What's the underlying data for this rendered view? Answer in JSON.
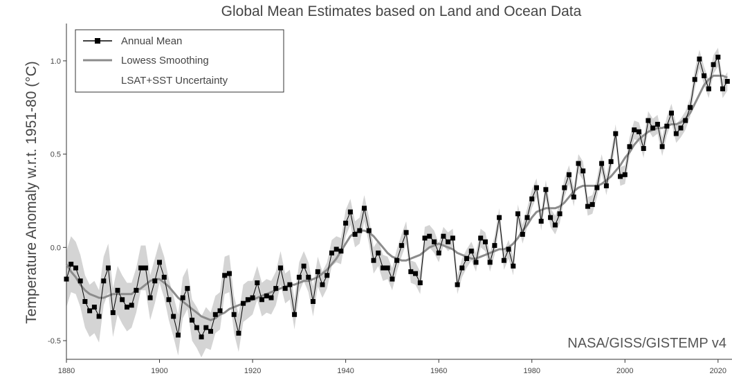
{
  "chart_data": {
    "type": "line",
    "title": "Global Mean Estimates based on Land and Ocean Data",
    "xlabel": "",
    "ylabel": "Temperature Anomaly w.r.t. 1951-80 (°C)",
    "source": "NASA/GISS/GISTEMP v4",
    "xlim": [
      1880,
      2023
    ],
    "ylim": [
      -0.6,
      1.2
    ],
    "xticks": [
      1880,
      1900,
      1920,
      1940,
      1960,
      1980,
      2000,
      2020
    ],
    "yticks": [
      -0.5,
      0.0,
      0.5,
      1.0
    ],
    "ytick_labels": [
      "-0.5",
      "0.0",
      "0.5",
      "1.0"
    ],
    "legend": {
      "position": "top-left",
      "entries": [
        "Annual Mean",
        "Lowess Smoothing",
        "LSAT+SST Uncertainty"
      ]
    },
    "colors": {
      "annual": "#000000",
      "lowess": "#8c8c8c",
      "uncertainty": "#d4d4d4"
    },
    "years_start": 1880,
    "series": [
      {
        "name": "Annual Mean",
        "values": [
          -0.17,
          -0.09,
          -0.11,
          -0.18,
          -0.29,
          -0.34,
          -0.32,
          -0.37,
          -0.18,
          -0.11,
          -0.35,
          -0.23,
          -0.28,
          -0.32,
          -0.31,
          -0.23,
          -0.11,
          -0.11,
          -0.27,
          -0.18,
          -0.08,
          -0.16,
          -0.28,
          -0.37,
          -0.47,
          -0.27,
          -0.22,
          -0.39,
          -0.43,
          -0.48,
          -0.43,
          -0.45,
          -0.36,
          -0.34,
          -0.15,
          -0.14,
          -0.36,
          -0.46,
          -0.3,
          -0.28,
          -0.27,
          -0.19,
          -0.28,
          -0.26,
          -0.27,
          -0.22,
          -0.11,
          -0.22,
          -0.2,
          -0.36,
          -0.16,
          -0.1,
          -0.16,
          -0.29,
          -0.13,
          -0.2,
          -0.15,
          -0.03,
          -0.01,
          -0.02,
          0.13,
          0.19,
          0.07,
          0.09,
          0.21,
          0.09,
          -0.07,
          -0.03,
          -0.11,
          -0.11,
          -0.17,
          -0.07,
          0.01,
          0.08,
          -0.13,
          -0.14,
          -0.19,
          0.05,
          0.06,
          0.03,
          -0.03,
          0.06,
          0.03,
          0.05,
          -0.2,
          -0.11,
          -0.06,
          -0.02,
          -0.08,
          0.05,
          0.03,
          -0.08,
          0.01,
          0.16,
          -0.07,
          -0.01,
          -0.1,
          0.18,
          0.07,
          0.16,
          0.26,
          0.32,
          0.14,
          0.31,
          0.16,
          0.12,
          0.18,
          0.32,
          0.39,
          0.27,
          0.45,
          0.41,
          0.22,
          0.23,
          0.32,
          0.45,
          0.33,
          0.46,
          0.61,
          0.38,
          0.39,
          0.54,
          0.63,
          0.62,
          0.53,
          0.68,
          0.64,
          0.66,
          0.54,
          0.65,
          0.72,
          0.61,
          0.64,
          0.68,
          0.75,
          0.9,
          1.01,
          0.92,
          0.85,
          0.98,
          1.02,
          0.85,
          0.89
        ]
      },
      {
        "name": "Lowess Smoothing",
        "values": [
          -0.09,
          -0.13,
          -0.16,
          -0.2,
          -0.23,
          -0.25,
          -0.26,
          -0.27,
          -0.27,
          -0.26,
          -0.25,
          -0.25,
          -0.25,
          -0.25,
          -0.25,
          -0.23,
          -0.22,
          -0.2,
          -0.18,
          -0.17,
          -0.17,
          -0.19,
          -0.21,
          -0.24,
          -0.27,
          -0.29,
          -0.31,
          -0.33,
          -0.35,
          -0.37,
          -0.38,
          -0.39,
          -0.38,
          -0.36,
          -0.35,
          -0.33,
          -0.32,
          -0.31,
          -0.3,
          -0.29,
          -0.28,
          -0.27,
          -0.26,
          -0.25,
          -0.24,
          -0.23,
          -0.22,
          -0.21,
          -0.2,
          -0.2,
          -0.19,
          -0.18,
          -0.18,
          -0.17,
          -0.16,
          -0.14,
          -0.12,
          -0.09,
          -0.06,
          -0.02,
          0.02,
          0.06,
          0.08,
          0.09,
          0.09,
          0.08,
          0.06,
          0.03,
          0.0,
          -0.03,
          -0.05,
          -0.06,
          -0.07,
          -0.07,
          -0.06,
          -0.05,
          -0.04,
          -0.02,
          0.0,
          0.01,
          0.02,
          0.01,
          0.0,
          -0.01,
          -0.03,
          -0.04,
          -0.05,
          -0.06,
          -0.06,
          -0.05,
          -0.04,
          -0.03,
          -0.02,
          -0.01,
          -0.01,
          0.0,
          0.02,
          0.05,
          0.09,
          0.12,
          0.16,
          0.19,
          0.2,
          0.21,
          0.21,
          0.21,
          0.22,
          0.24,
          0.27,
          0.3,
          0.32,
          0.33,
          0.33,
          0.33,
          0.33,
          0.34,
          0.36,
          0.38,
          0.41,
          0.44,
          0.48,
          0.51,
          0.55,
          0.58,
          0.6,
          0.62,
          0.63,
          0.64,
          0.64,
          0.65,
          0.66,
          0.66,
          0.67,
          0.69,
          0.72,
          0.77,
          0.82,
          0.87,
          0.9,
          0.92,
          0.92,
          0.92,
          0.91
        ]
      }
    ],
    "uncertainty_halfwidth": [
      0.15,
      0.15,
      0.14,
      0.14,
      0.14,
      0.14,
      0.14,
      0.14,
      0.13,
      0.13,
      0.13,
      0.13,
      0.13,
      0.13,
      0.12,
      0.12,
      0.12,
      0.12,
      0.12,
      0.12,
      0.11,
      0.11,
      0.11,
      0.11,
      0.11,
      0.11,
      0.11,
      0.11,
      0.11,
      0.11,
      0.11,
      0.1,
      0.1,
      0.1,
      0.1,
      0.1,
      0.1,
      0.1,
      0.1,
      0.1,
      0.09,
      0.09,
      0.09,
      0.09,
      0.09,
      0.09,
      0.09,
      0.08,
      0.08,
      0.08,
      0.08,
      0.08,
      0.08,
      0.08,
      0.08,
      0.07,
      0.07,
      0.07,
      0.07,
      0.07,
      0.07,
      0.07,
      0.07,
      0.07,
      0.07,
      0.07,
      0.07,
      0.07,
      0.07,
      0.06,
      0.06,
      0.06,
      0.06,
      0.06,
      0.06,
      0.06,
      0.06,
      0.06,
      0.06,
      0.06,
      0.05,
      0.05,
      0.05,
      0.05,
      0.05,
      0.05,
      0.05,
      0.05,
      0.05,
      0.05,
      0.05,
      0.05,
      0.05,
      0.05,
      0.05,
      0.05,
      0.05,
      0.05,
      0.05,
      0.05,
      0.05,
      0.05,
      0.05,
      0.05,
      0.05,
      0.05,
      0.05,
      0.05,
      0.05,
      0.05,
      0.05,
      0.05,
      0.05,
      0.05,
      0.05,
      0.05,
      0.05,
      0.05,
      0.05,
      0.05,
      0.05,
      0.05,
      0.05,
      0.05,
      0.05,
      0.05,
      0.05,
      0.05,
      0.05,
      0.05,
      0.05,
      0.05,
      0.05,
      0.05,
      0.05,
      0.05,
      0.05,
      0.05,
      0.05,
      0.05,
      0.05,
      0.05,
      0.05
    ]
  }
}
